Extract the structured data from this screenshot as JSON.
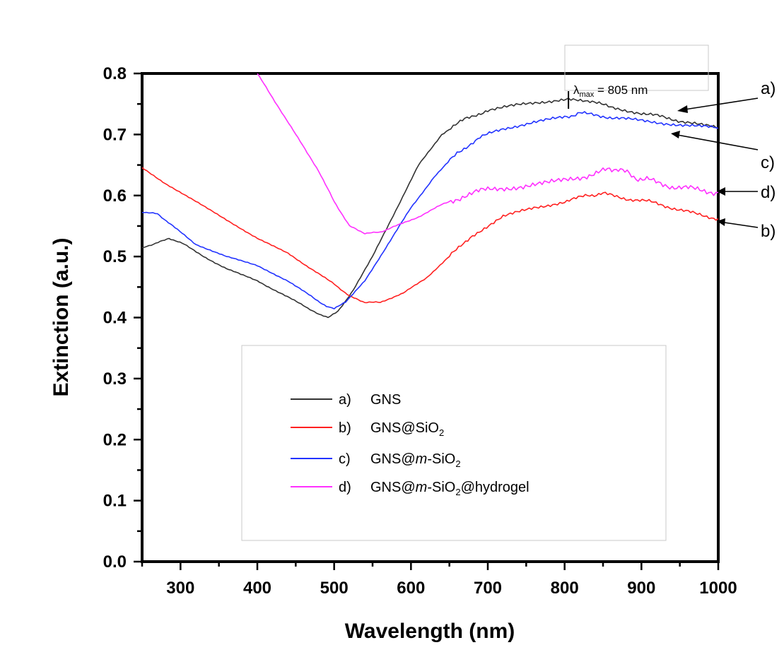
{
  "chart_data": {
    "type": "line",
    "xlabel": "Wavelength (nm)",
    "ylabel": "Extinction (a.u.)",
    "xlim": [
      250,
      1000
    ],
    "ylim": [
      0.0,
      0.8
    ],
    "x_ticks": [
      300,
      400,
      500,
      600,
      700,
      800,
      900,
      1000
    ],
    "y_ticks": [
      "0.0",
      "0.1",
      "0.2",
      "0.3",
      "0.4",
      "0.5",
      "0.6",
      "0.7",
      "0.8"
    ],
    "grid": false,
    "legend_position": "bottom-center",
    "annotation": {
      "symbol": "λ",
      "subscript": "max",
      "text": " = 805 nm",
      "x": 805,
      "y": 0.76
    },
    "series": [
      {
        "key": "a",
        "letter": "a)",
        "legend_label": "GNS",
        "color": "#333333",
        "x": [
          250,
          265,
          285,
          305,
          330,
          360,
          400,
          430,
          460,
          480,
          492,
          505,
          525,
          550,
          580,
          610,
          640,
          670,
          700,
          740,
          780,
          805,
          830,
          860,
          900,
          930,
          960,
          1000
        ],
        "y": [
          0.515,
          0.52,
          0.53,
          0.52,
          0.5,
          0.48,
          0.46,
          0.44,
          0.42,
          0.405,
          0.4,
          0.41,
          0.445,
          0.5,
          0.575,
          0.65,
          0.7,
          0.725,
          0.74,
          0.748,
          0.755,
          0.76,
          0.755,
          0.745,
          0.735,
          0.728,
          0.72,
          0.71
        ]
      },
      {
        "key": "b",
        "letter": "b)",
        "legend_label_main": "GNS@SiO",
        "legend_label_sub": "2",
        "color": "#ff2020",
        "x": [
          250,
          280,
          320,
          360,
          400,
          440,
          470,
          500,
          520,
          540,
          560,
          590,
          620,
          650,
          680,
          720,
          760,
          800,
          830,
          850,
          880,
          910,
          940,
          970,
          1000
        ],
        "y": [
          0.645,
          0.62,
          0.59,
          0.56,
          0.53,
          0.505,
          0.48,
          0.455,
          0.435,
          0.425,
          0.425,
          0.44,
          0.465,
          0.5,
          0.535,
          0.565,
          0.58,
          0.59,
          0.6,
          0.603,
          0.595,
          0.59,
          0.58,
          0.57,
          0.562
        ]
      },
      {
        "key": "c",
        "letter": "c)",
        "legend_label_main": "GNS@",
        "legend_label_italic": "m",
        "legend_label_tail": "-SiO",
        "legend_label_sub": "2",
        "color": "#2233ff",
        "x": [
          250,
          270,
          290,
          320,
          360,
          400,
          440,
          470,
          490,
          500,
          515,
          540,
          570,
          600,
          630,
          660,
          690,
          720,
          760,
          800,
          820,
          850,
          880,
          920,
          960,
          1000
        ],
        "y": [
          0.573,
          0.57,
          0.55,
          0.52,
          0.5,
          0.485,
          0.46,
          0.435,
          0.418,
          0.415,
          0.425,
          0.46,
          0.52,
          0.58,
          0.63,
          0.67,
          0.695,
          0.71,
          0.72,
          0.728,
          0.735,
          0.73,
          0.725,
          0.72,
          0.715,
          0.71
        ]
      },
      {
        "key": "d",
        "letter": "d)",
        "legend_label_main": "GNS@",
        "legend_label_italic": "m",
        "legend_label_tail": "-SiO",
        "legend_label_sub": "2",
        "legend_label_end": "@hydrogel",
        "color": "#ff30ff",
        "x": [
          400,
          420,
          450,
          480,
          500,
          520,
          540,
          560,
          580,
          610,
          640,
          670,
          700,
          740,
          780,
          820,
          850,
          870,
          890,
          910,
          940,
          970,
          1000
        ],
        "y": [
          0.8,
          0.76,
          0.7,
          0.64,
          0.59,
          0.55,
          0.538,
          0.54,
          0.55,
          0.565,
          0.585,
          0.6,
          0.61,
          0.615,
          0.62,
          0.63,
          0.64,
          0.645,
          0.63,
          0.625,
          0.615,
          0.61,
          0.605
        ]
      }
    ]
  }
}
